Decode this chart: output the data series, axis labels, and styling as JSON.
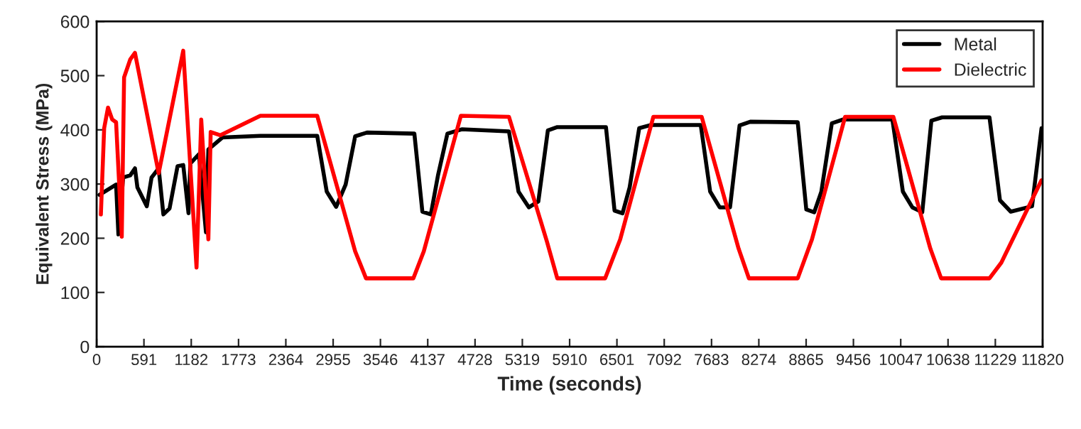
{
  "chart_data": {
    "type": "line",
    "xlabel": "Time (seconds)",
    "ylabel": "Equivalent Stress (MPa)",
    "xlim": [
      0,
      11820
    ],
    "xticks": [
      0,
      591,
      1182,
      1773,
      2364,
      2955,
      3546,
      4137,
      4728,
      5319,
      5910,
      6501,
      7092,
      7683,
      8274,
      8865,
      9456,
      10047,
      10638,
      11229,
      11820
    ],
    "ylim": [
      0,
      600
    ],
    "yticks": [
      0,
      100,
      200,
      300,
      400,
      500,
      600
    ],
    "grid": false,
    "legend": "top right",
    "marker": "none",
    "line_style": "solid",
    "series": [
      {
        "name": "Metal",
        "color": "#000000",
        "x": [
          35,
          243,
          272,
          331,
          420,
          479,
          509,
          627,
          686,
          775,
          834,
          911,
          1011,
          1082,
          1148,
          1171,
          1278,
          1366,
          1396,
          1574,
          2046,
          2756,
          2875,
          2993,
          3111,
          3230,
          3378,
          3970,
          4070,
          4176,
          4265,
          4383,
          4561,
          4857,
          5152,
          5271,
          5401,
          5519,
          5638,
          5756,
          6364,
          6471,
          6571,
          6660,
          6779,
          6927,
          7548,
          7666,
          7785,
          7914,
          8033,
          8168,
          8760,
          8867,
          8966,
          9055,
          9186,
          9322,
          9943,
          10074,
          10192,
          10316,
          10430,
          10564,
          11156,
          11287,
          11422,
          11688,
          11806
        ],
        "values": [
          280,
          299,
          207,
          312,
          316,
          329,
          294,
          259,
          312,
          329,
          244,
          255,
          333,
          335,
          246,
          338,
          355,
          211,
          364,
          386,
          389,
          389,
          286,
          258,
          299,
          388,
          395,
          393,
          249,
          244,
          316,
          393,
          401,
          399,
          397,
          286,
          257,
          268,
          399,
          405,
          405,
          251,
          246,
          294,
          403,
          409,
          409,
          286,
          257,
          257,
          408,
          415,
          414,
          253,
          248,
          286,
          412,
          419,
          419,
          286,
          257,
          248,
          417,
          423,
          423,
          270,
          249,
          259,
          403
        ]
      },
      {
        "name": "Dielectric",
        "color": "#ff0000",
        "x": [
          53,
          94,
          142,
          195,
          243,
          314,
          343,
          420,
          479,
          775,
          1082,
          1248,
          1307,
          1396,
          1425,
          1544,
          2046,
          2756,
          3230,
          3366,
          3957,
          4088,
          4551,
          5152,
          5626,
          5756,
          6353,
          6542,
          6956,
          7560,
          8021,
          8150,
          8760,
          8938,
          9352,
          9955,
          10417,
          10552,
          11156,
          11304,
          11806
        ],
        "values": [
          244,
          403,
          441,
          419,
          414,
          203,
          497,
          530,
          542,
          320,
          546,
          146,
          419,
          198,
          396,
          390,
          426,
          426,
          176,
          126,
          126,
          176,
          426,
          424,
          194,
          126,
          126,
          198,
          424,
          424,
          181,
          126,
          126,
          198,
          424,
          424,
          181,
          126,
          126,
          155,
          307
        ]
      }
    ]
  }
}
